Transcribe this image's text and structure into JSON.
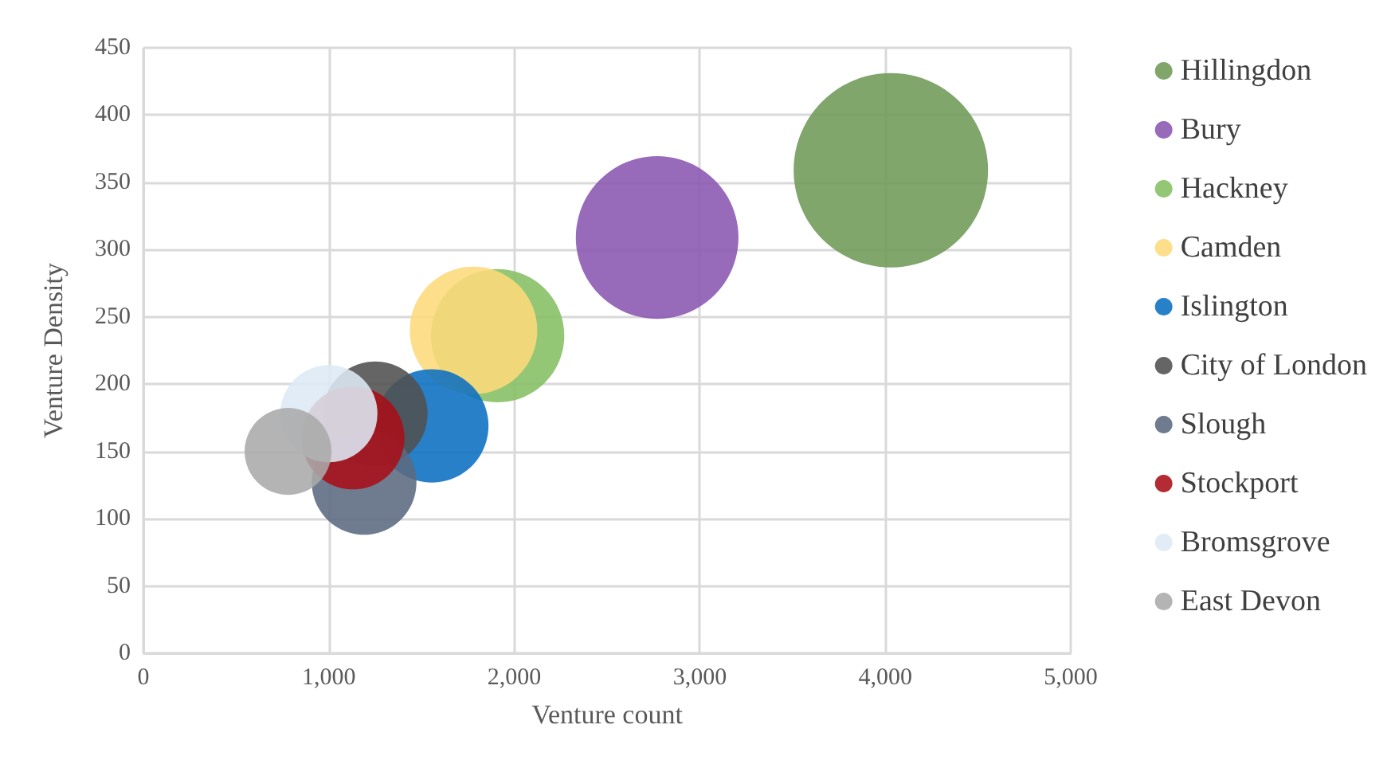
{
  "chart_data": {
    "type": "bubble",
    "xlabel": "Venture count",
    "ylabel": "Venture Density",
    "xlim": [
      0,
      5000
    ],
    "xticks": [
      0,
      {
        "value": 1000,
        "label": "1,000"
      },
      {
        "value": 2000,
        "label": "2,000"
      },
      {
        "value": 3000,
        "label": "3,000"
      },
      {
        "value": 4000,
        "label": "4,000"
      },
      {
        "value": 5000,
        "label": "5,000"
      }
    ],
    "ylim": [
      0,
      450
    ],
    "yticks": [
      0,
      50,
      100,
      150,
      200,
      250,
      300,
      350,
      400,
      450
    ],
    "grid": true,
    "legend": "right",
    "series": [
      {
        "name": "Hillingdon",
        "color": "#6e9a56",
        "x": [
          4030
        ],
        "values": [
          359
        ],
        "sizes": [
          1
        ]
      },
      {
        "name": "Bury",
        "color": "#8a55b0",
        "x": [
          2770
        ],
        "values": [
          309
        ],
        "sizes": [
          0.7
        ]
      },
      {
        "name": "Hackney",
        "color": "#85bf62",
        "x": [
          1910
        ],
        "values": [
          236
        ],
        "sizes": [
          0.47
        ]
      },
      {
        "name": "Camden",
        "color": "#fdd97a",
        "x": [
          1780
        ],
        "values": [
          240
        ],
        "sizes": [
          0.43
        ]
      },
      {
        "name": "Islington",
        "color": "#0a70c0",
        "x": [
          1555
        ],
        "values": [
          169
        ],
        "sizes": [
          0.34
        ]
      },
      {
        "name": "City of London",
        "color": "#505050",
        "x": [
          1250
        ],
        "values": [
          178
        ],
        "sizes": [
          0.29
        ]
      },
      {
        "name": "Slough",
        "color": "#5b6a80",
        "x": [
          1190
        ],
        "values": [
          127
        ],
        "sizes": [
          0.29
        ]
      },
      {
        "name": "Stockport",
        "color": "#a80f18",
        "x": [
          1130
        ],
        "values": [
          160
        ],
        "sizes": [
          0.28
        ]
      },
      {
        "name": "Bromsgrove",
        "color": "#dde9f5",
        "x": [
          1000
        ],
        "values": [
          178
        ],
        "sizes": [
          0.25
        ]
      },
      {
        "name": "East Devon",
        "color": "#aaaaaa",
        "x": [
          780
        ],
        "values": [
          150
        ],
        "sizes": [
          0.2
        ]
      }
    ]
  }
}
